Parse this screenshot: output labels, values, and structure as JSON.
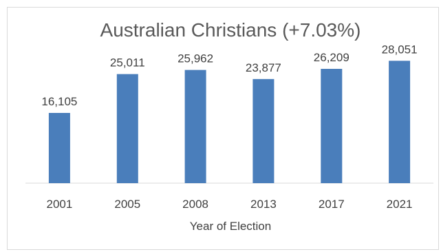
{
  "chart_data": {
    "type": "bar",
    "title": "Australian Christians (+7.03%)",
    "xlabel": "Year of Election",
    "ylabel": "",
    "categories": [
      "2001",
      "2005",
      "2008",
      "2013",
      "2017",
      "2021"
    ],
    "values": [
      16105,
      25011,
      25962,
      23877,
      26209,
      28051
    ],
    "data_labels": [
      "16,105",
      "25,011",
      "25,962",
      "23,877",
      "26,209",
      "28,051"
    ],
    "ylim": [
      0,
      30000
    ],
    "grid": false,
    "legend": "none",
    "bar_color": "#4a7ebb",
    "axis_color": "#d9d9d9"
  }
}
